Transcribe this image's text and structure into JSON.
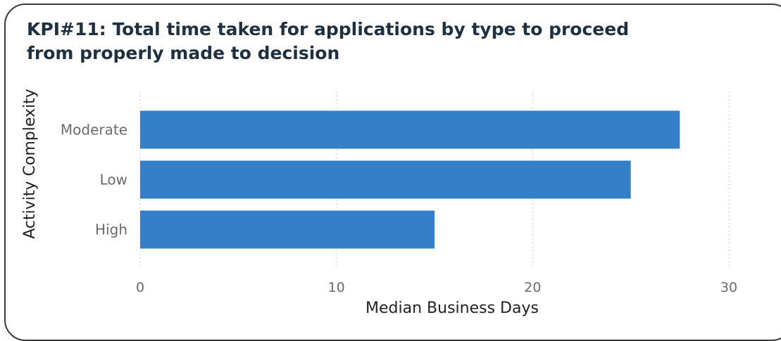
{
  "title": {
    "kpi": "KPI#11:",
    "text": " Total time taken for applications by type to proceed from properly made to decision"
  },
  "chart_data": {
    "type": "bar",
    "orientation": "horizontal",
    "categories": [
      "Moderate",
      "Low",
      "High"
    ],
    "values": [
      27.5,
      25,
      15
    ],
    "xlabel": "Median Business Days",
    "ylabel": "Activity Complexity",
    "xlim": [
      0,
      30
    ],
    "xticks": [
      0,
      10,
      20,
      30
    ],
    "grid": "vertical-dotted",
    "bar_color": "#3380c9"
  }
}
